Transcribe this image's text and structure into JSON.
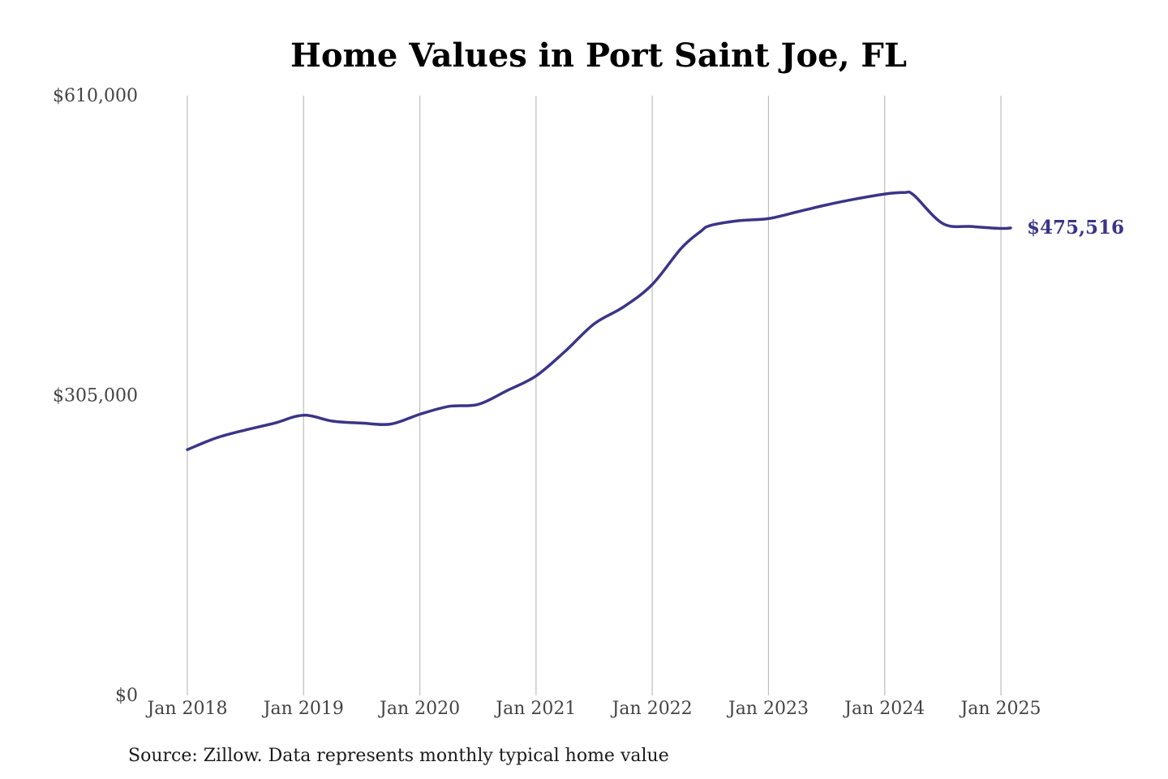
{
  "chart_data": {
    "type": "line",
    "title": "Home Values in Port Saint Joe, FL",
    "source": "Source: Zillow. Data represents monthly typical home value",
    "xlabel": "",
    "ylabel": "",
    "ylim": [
      0,
      610000
    ],
    "yticks": [
      {
        "value": 0,
        "label": "$0"
      },
      {
        "value": 305000,
        "label": "$305,000"
      },
      {
        "value": 610000,
        "label": "$610,000"
      }
    ],
    "xticks": [
      {
        "value": "2018-01",
        "label": "Jan 2018"
      },
      {
        "value": "2019-01",
        "label": "Jan 2019"
      },
      {
        "value": "2020-01",
        "label": "Jan 2020"
      },
      {
        "value": "2021-01",
        "label": "Jan 2021"
      },
      {
        "value": "2022-01",
        "label": "Jan 2022"
      },
      {
        "value": "2023-01",
        "label": "Jan 2023"
      },
      {
        "value": "2024-01",
        "label": "Jan 2024"
      },
      {
        "value": "2025-01",
        "label": "Jan 2025"
      }
    ],
    "grid": "vertical",
    "line_color": "#3a3587",
    "end_label": "$475,516",
    "series": [
      {
        "name": "",
        "x": [
          "2018-01",
          "2018-04",
          "2018-07",
          "2018-10",
          "2019-01",
          "2019-04",
          "2019-07",
          "2019-10",
          "2020-01",
          "2020-04",
          "2020-07",
          "2020-10",
          "2021-01",
          "2021-04",
          "2021-07",
          "2021-10",
          "2022-01",
          "2022-04",
          "2022-06",
          "2022-07",
          "2022-10",
          "2023-01",
          "2023-04",
          "2023-07",
          "2023-10",
          "2024-01",
          "2024-03",
          "2024-04",
          "2024-07",
          "2024-10",
          "2025-01",
          "2025-02"
        ],
        "values": [
          250000,
          262000,
          270000,
          277000,
          285000,
          279000,
          277000,
          276000,
          286000,
          294000,
          296000,
          310000,
          325000,
          350000,
          378000,
          395000,
          418000,
          455000,
          472000,
          478000,
          483000,
          485000,
          492000,
          499000,
          505000,
          510000,
          511500,
          509000,
          480000,
          477000,
          475000,
          475516
        ]
      }
    ]
  }
}
